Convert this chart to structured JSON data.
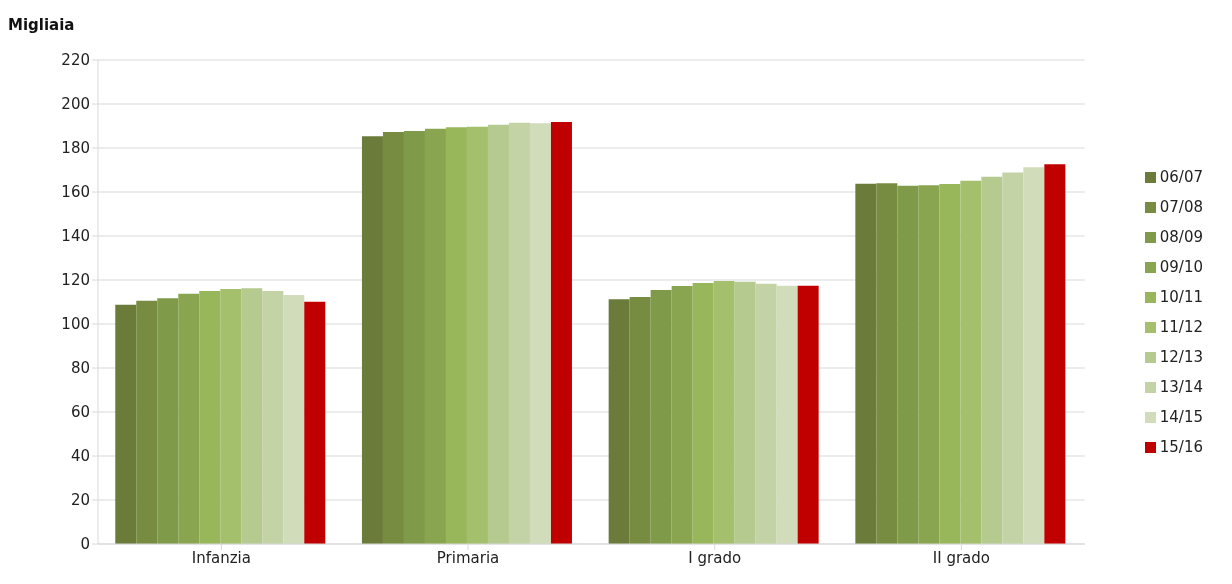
{
  "chart_data": {
    "type": "bar",
    "ylabel": "Migliaia",
    "categories": [
      "Infanzia",
      "Primaria",
      "I grado",
      "II grado"
    ],
    "series": [
      {
        "name": "06/07",
        "color": "#6a7b3a",
        "values": [
          108.8,
          185.3,
          111.2,
          163.7
        ]
      },
      {
        "name": "07/08",
        "color": "#778c41",
        "values": [
          110.6,
          187.3,
          112.3,
          164.0
        ]
      },
      {
        "name": "08/09",
        "color": "#7f9a48",
        "values": [
          111.7,
          187.7,
          115.4,
          162.8
        ]
      },
      {
        "name": "09/10",
        "color": "#8aa54f",
        "values": [
          113.8,
          188.8,
          117.3,
          163.1
        ]
      },
      {
        "name": "10/11",
        "color": "#98b65a",
        "values": [
          115.0,
          189.4,
          118.6,
          163.6
        ]
      },
      {
        "name": "11/12",
        "color": "#a4c06c",
        "values": [
          115.9,
          189.7,
          119.6,
          165.1
        ]
      },
      {
        "name": "12/13",
        "color": "#b4ca8e",
        "values": [
          116.2,
          190.6,
          119.2,
          166.9
        ]
      },
      {
        "name": "13/14",
        "color": "#c3d3a6",
        "values": [
          115.0,
          191.5,
          118.3,
          168.9
        ]
      },
      {
        "name": "14/15",
        "color": "#d0dcba",
        "values": [
          113.2,
          191.3,
          117.4,
          171.3
        ]
      },
      {
        "name": "15/16",
        "color": "#c00000",
        "values": [
          110.1,
          191.8,
          117.4,
          172.6
        ]
      }
    ],
    "ylim": [
      0,
      220
    ],
    "yticks": [
      0,
      20,
      40,
      60,
      80,
      100,
      120,
      140,
      160,
      180,
      200,
      220
    ],
    "grid": "y",
    "legend": "right"
  }
}
